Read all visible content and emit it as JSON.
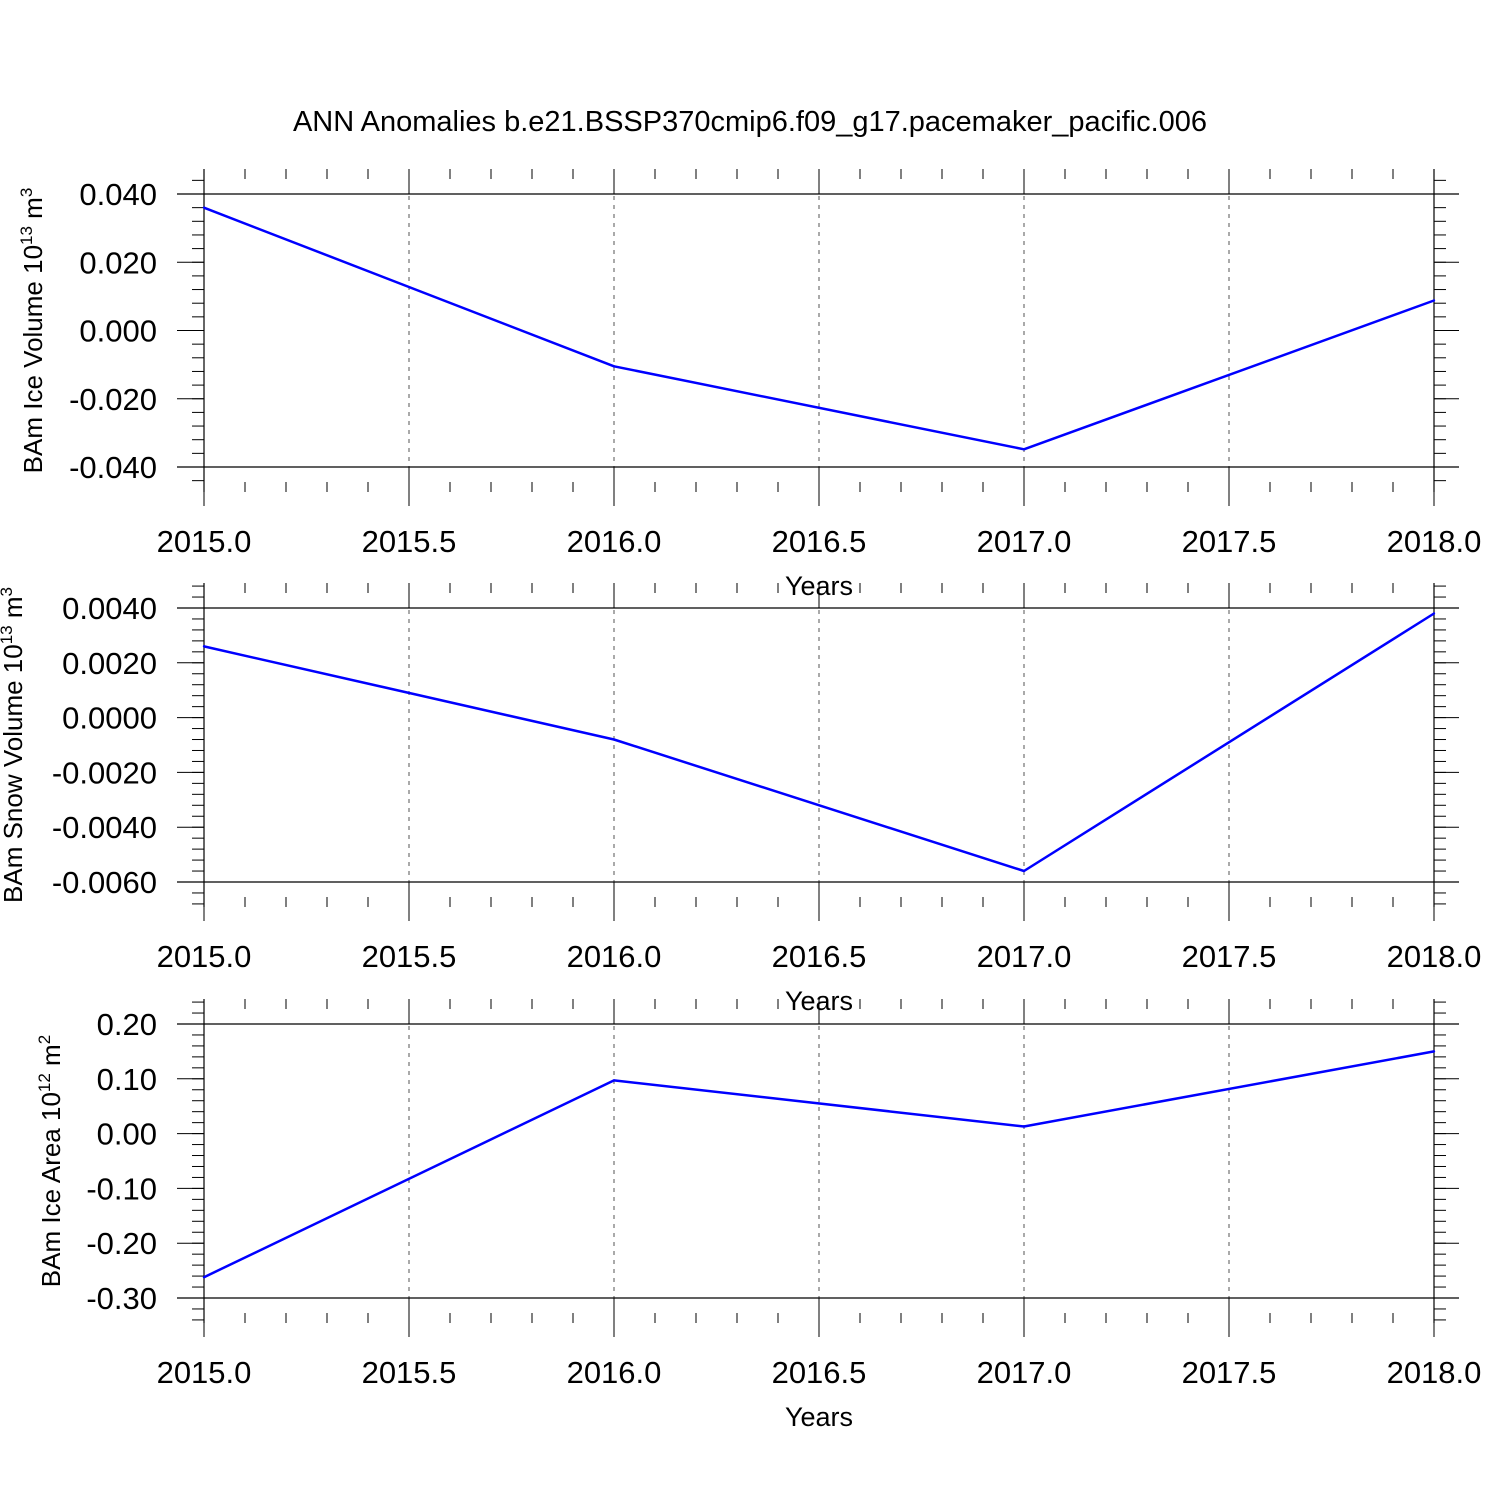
{
  "title": "ANN Anomalies b.e21.BSSP370cmip6.f09_g17.pacemaker_pacific.006",
  "line_color": "#0000ff",
  "grid_color": "#555555",
  "chart_data": [
    {
      "type": "line",
      "ylabel_main": "BAm Ice Volume 10",
      "ylabel_exp": "13",
      "ylabel_unit": "m",
      "ylabel_unit_exp": "3",
      "xlabel": "Years",
      "x": [
        2015,
        2016,
        2017,
        2018
      ],
      "y": [
        0.036,
        -0.0105,
        -0.0348,
        0.0088
      ],
      "xlim": [
        2015.0,
        2018.0
      ],
      "ylim": [
        -0.04,
        0.04
      ],
      "xticks": [
        2015.0,
        2015.5,
        2016.0,
        2016.5,
        2017.0,
        2017.5,
        2018.0
      ],
      "xtick_labels": [
        "2015.0",
        "2015.5",
        "2016.0",
        "2016.5",
        "2017.0",
        "2017.5",
        "2018.0"
      ],
      "yticks": [
        0.04,
        0.02,
        0.0,
        -0.02,
        -0.04
      ],
      "ytick_labels": [
        "0.040",
        "0.020",
        "0.000",
        "-0.020",
        "-0.040"
      ],
      "grid": "vertical dashed"
    },
    {
      "type": "line",
      "ylabel_main": "BAm Snow Volume 10",
      "ylabel_exp": "13",
      "ylabel_unit": "m",
      "ylabel_unit_exp": "3",
      "xlabel": "Years",
      "x": [
        2015,
        2016,
        2017,
        2018
      ],
      "y": [
        0.0026,
        -0.0008,
        -0.0056,
        0.0038
      ],
      "xlim": [
        2015.0,
        2018.0
      ],
      "ylim": [
        -0.006,
        0.004
      ],
      "xticks": [
        2015.0,
        2015.5,
        2016.0,
        2016.5,
        2017.0,
        2017.5,
        2018.0
      ],
      "xtick_labels": [
        "2015.0",
        "2015.5",
        "2016.0",
        "2016.5",
        "2017.0",
        "2017.5",
        "2018.0"
      ],
      "yticks": [
        0.004,
        0.002,
        0.0,
        -0.002,
        -0.004,
        -0.006
      ],
      "ytick_labels": [
        "0.0040",
        "0.0020",
        "0.0000",
        "-0.0020",
        "-0.0040",
        "-0.0060"
      ],
      "grid": "vertical dashed"
    },
    {
      "type": "line",
      "ylabel_main": "BAm Ice Area 10",
      "ylabel_exp": "12",
      "ylabel_unit": "m",
      "ylabel_unit_exp": "2",
      "xlabel": "Years",
      "x": [
        2015,
        2016,
        2017,
        2018
      ],
      "y": [
        -0.262,
        0.097,
        0.013,
        0.15
      ],
      "xlim": [
        2015.0,
        2018.0
      ],
      "ylim": [
        -0.3,
        0.2
      ],
      "xticks": [
        2015.0,
        2015.5,
        2016.0,
        2016.5,
        2017.0,
        2017.5,
        2018.0
      ],
      "xtick_labels": [
        "2015.0",
        "2015.5",
        "2016.0",
        "2016.5",
        "2017.0",
        "2017.5",
        "2018.0"
      ],
      "yticks": [
        0.2,
        0.1,
        0.0,
        -0.1,
        -0.2,
        -0.3
      ],
      "ytick_labels": [
        "0.20",
        "0.10",
        "0.00",
        "-0.10",
        "-0.20",
        "-0.30"
      ],
      "grid": "vertical dashed"
    }
  ]
}
